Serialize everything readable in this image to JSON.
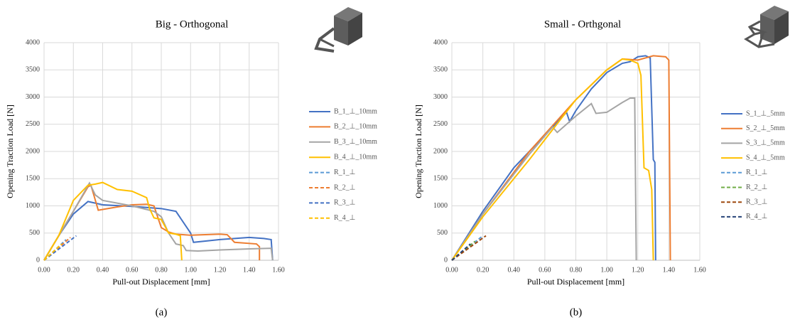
{
  "chart_data": [
    {
      "type": "line",
      "title": "Big - Orthogonal",
      "x_label": "Pull-out Displacement [mm]",
      "y_label": "Opening Traction Load [N]",
      "caption": "(a)",
      "xlim": [
        0,
        1.6
      ],
      "ylim": [
        0,
        4000
      ],
      "grid": true,
      "xticks": [
        {
          "value": 0,
          "label": "0.00"
        },
        {
          "value": 0.2,
          "label": "0.20"
        },
        {
          "value": 0.4,
          "label": "0.40"
        },
        {
          "value": 0.6,
          "label": "0.60"
        },
        {
          "value": 0.8,
          "label": "0.80"
        },
        {
          "value": 1.0,
          "label": "1.00"
        },
        {
          "value": 1.2,
          "label": "1.20"
        },
        {
          "value": 1.4,
          "label": "1.40"
        },
        {
          "value": 1.6,
          "label": "1.60"
        }
      ],
      "yticks": [
        0,
        500,
        1000,
        1500,
        2000,
        2500,
        3000,
        3500,
        4000
      ],
      "series": [
        {
          "name": "B_1_⊥_10mm",
          "color": "#4472c4",
          "x": [
            0,
            0.1,
            0.2,
            0.3,
            0.4,
            0.6,
            0.8,
            0.9,
            1.0,
            1.02,
            1.2,
            1.4,
            1.5,
            1.55,
            1.56
          ],
          "values": [
            0,
            450,
            850,
            1080,
            1020,
            990,
            950,
            900,
            500,
            330,
            380,
            420,
            400,
            380,
            0
          ]
        },
        {
          "name": "B_2_⊥_10mm",
          "color": "#ed7d31",
          "x": [
            0,
            0.1,
            0.2,
            0.3,
            0.32,
            0.37,
            0.5,
            0.6,
            0.7,
            0.75,
            0.8,
            0.85,
            0.9,
            1.0,
            1.2,
            1.25,
            1.3,
            1.45,
            1.47,
            1.47
          ],
          "values": [
            0,
            450,
            900,
            1350,
            1380,
            920,
            980,
            1020,
            1030,
            1000,
            600,
            520,
            480,
            460,
            480,
            470,
            330,
            300,
            250,
            0
          ]
        },
        {
          "name": "B_3_⊥_10mm",
          "color": "#a5a5a5",
          "x": [
            0,
            0.1,
            0.2,
            0.31,
            0.35,
            0.4,
            0.6,
            0.75,
            0.8,
            0.85,
            0.9,
            0.95,
            0.97,
            1.05,
            1.2,
            1.4,
            1.55,
            1.56
          ],
          "values": [
            0,
            450,
            900,
            1420,
            1200,
            1100,
            1000,
            900,
            800,
            500,
            300,
            270,
            180,
            170,
            190,
            210,
            220,
            0
          ]
        },
        {
          "name": "B_4_⊥_10mm",
          "color": "#ffc000",
          "x": [
            0,
            0.1,
            0.2,
            0.3,
            0.35,
            0.4,
            0.5,
            0.6,
            0.7,
            0.72,
            0.75,
            0.8,
            0.85,
            0.9,
            0.93,
            0.94
          ],
          "values": [
            0,
            450,
            1100,
            1380,
            1400,
            1430,
            1300,
            1270,
            1150,
            950,
            780,
            750,
            500,
            480,
            450,
            0
          ]
        },
        {
          "name": "R_1_⊥",
          "color": "#5b9bd5",
          "dashed": true,
          "x": [
            0,
            0.15
          ],
          "values": [
            0,
            380
          ]
        },
        {
          "name": "R_2_⊥",
          "color": "#ed7d31",
          "dashed": true,
          "x": [
            0,
            0.18
          ],
          "values": [
            0,
            420
          ]
        },
        {
          "name": "R_3_⊥",
          "color": "#4472c4",
          "dashed": true,
          "x": [
            0,
            0.22
          ],
          "values": [
            0,
            450
          ]
        },
        {
          "name": "R_4_⊥",
          "color": "#ffc000",
          "dashed": true,
          "x": [
            0,
            0.12
          ],
          "values": [
            0,
            300
          ]
        }
      ]
    },
    {
      "type": "line",
      "title": "Small - Orthgonal",
      "x_label": "Pull-out Displacement [mm]",
      "y_label": "Opening Traction Load [N]",
      "caption": "(b)",
      "xlim": [
        0,
        1.6
      ],
      "ylim": [
        0,
        4000
      ],
      "grid": true,
      "xticks": [
        {
          "value": 0,
          "label": "0.00"
        },
        {
          "value": 0.2,
          "label": "0.20"
        },
        {
          "value": 0.4,
          "label": "0.40"
        },
        {
          "value": 0.6,
          "label": "0.60"
        },
        {
          "value": 0.8,
          "label": "0.80"
        },
        {
          "value": 1.0,
          "label": "1.00"
        },
        {
          "value": 1.2,
          "label": "1.20"
        },
        {
          "value": 1.4,
          "label": "1.40"
        },
        {
          "value": 1.6,
          "label": "1.60"
        }
      ],
      "yticks": [
        0,
        500,
        1000,
        1500,
        2000,
        2500,
        3000,
        3500,
        4000
      ],
      "series": [
        {
          "name": "S_1_⊥_5mm",
          "color": "#4472c4",
          "x": [
            0,
            0.2,
            0.4,
            0.6,
            0.7,
            0.74,
            0.76,
            0.8,
            0.9,
            1.0,
            1.1,
            1.15,
            1.2,
            1.25,
            1.28,
            1.3,
            1.31,
            1.315
          ],
          "values": [
            0,
            900,
            1700,
            2300,
            2600,
            2720,
            2550,
            2750,
            3150,
            3450,
            3620,
            3650,
            3740,
            3760,
            3720,
            1850,
            1800,
            0
          ]
        },
        {
          "name": "S_2_⊥_5mm",
          "color": "#ed7d31",
          "x": [
            0,
            0.2,
            0.5,
            0.8,
            1.0,
            1.1,
            1.2,
            1.3,
            1.38,
            1.4,
            1.41
          ],
          "values": [
            0,
            850,
            2000,
            2950,
            3500,
            3700,
            3680,
            3760,
            3740,
            3680,
            0
          ]
        },
        {
          "name": "S_3_⊥_5mm",
          "color": "#a5a5a5",
          "x": [
            0,
            0.2,
            0.5,
            0.65,
            0.68,
            0.8,
            0.9,
            0.93,
            1.0,
            1.1,
            1.15,
            1.18,
            1.19
          ],
          "values": [
            0,
            850,
            1950,
            2450,
            2350,
            2650,
            2880,
            2700,
            2720,
            2900,
            2980,
            2980,
            0
          ]
        },
        {
          "name": "S_4_⊥_5mm",
          "color": "#ffc000",
          "x": [
            0,
            0.2,
            0.5,
            0.8,
            1.0,
            1.1,
            1.15,
            1.2,
            1.22,
            1.24,
            1.27,
            1.29,
            1.3
          ],
          "values": [
            0,
            800,
            1850,
            2950,
            3500,
            3700,
            3680,
            3620,
            3400,
            1700,
            1650,
            1300,
            0
          ]
        },
        {
          "name": "R_1_⊥",
          "color": "#5b9bd5",
          "dashed": true,
          "x": [
            0,
            0.2
          ],
          "values": [
            0,
            450
          ]
        },
        {
          "name": "R_2_⊥",
          "color": "#70ad47",
          "dashed": true,
          "x": [
            0,
            0.15
          ],
          "values": [
            0,
            350
          ]
        },
        {
          "name": "R_3_⊥",
          "color": "#9e480e",
          "dashed": true,
          "x": [
            0,
            0.22
          ],
          "values": [
            0,
            450
          ]
        },
        {
          "name": "R_4_⊥",
          "color": "#264478",
          "dashed": true,
          "x": [
            0,
            0.12
          ],
          "values": [
            0,
            300
          ]
        }
      ]
    }
  ]
}
